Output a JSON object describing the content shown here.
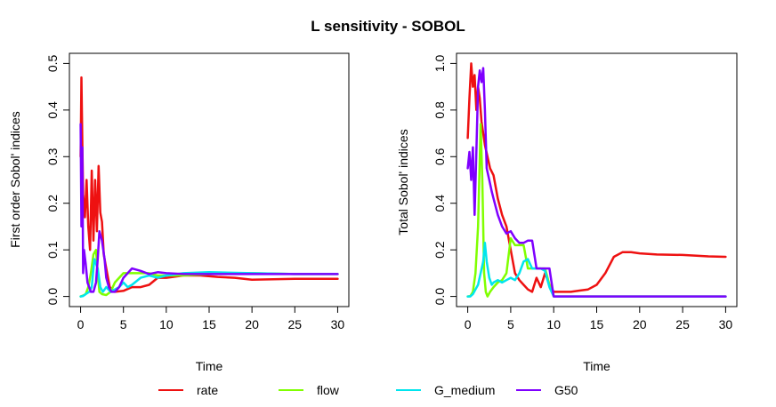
{
  "figure": {
    "title": "L sensitivity - SOBOL"
  },
  "colors": {
    "rate": "#ee1111",
    "flow": "#80ff00",
    "G_medium": "#00e5ee",
    "G50": "#7f00ff"
  },
  "legend": {
    "placement": "bottom",
    "items": [
      {
        "name": "rate",
        "label": "rate"
      },
      {
        "name": "flow",
        "label": "flow"
      },
      {
        "name": "G_medium",
        "label": "G_medium"
      },
      {
        "name": "G50",
        "label": "G50"
      }
    ]
  },
  "chart_data": [
    {
      "type": "line",
      "title": "",
      "xlabel": "Time",
      "ylabel": "First order Sobol' indices",
      "xlim": [
        0,
        30
      ],
      "ylim": [
        0,
        0.5
      ],
      "xticks": [
        "0",
        "5",
        "10",
        "15",
        "20",
        "25",
        "30"
      ],
      "yticks": [
        "0.0",
        "0.1",
        "0.2",
        "0.3",
        "0.4",
        "0.5"
      ],
      "series": [
        {
          "name": "rate",
          "x": [
            0,
            0.1,
            0.2,
            0.3,
            0.5,
            0.7,
            0.9,
            1.1,
            1.3,
            1.5,
            1.7,
            1.9,
            2.1,
            2.3,
            2.5,
            2.7,
            3.0,
            3.4,
            4,
            5,
            6,
            7,
            8,
            9,
            10,
            12,
            14,
            16,
            18,
            20,
            25,
            30
          ],
          "y": [
            0.3,
            0.47,
            0.33,
            0.22,
            0.17,
            0.25,
            0.15,
            0.1,
            0.27,
            0.12,
            0.25,
            0.14,
            0.28,
            0.18,
            0.16,
            0.09,
            0.06,
            0.02,
            0.01,
            0.012,
            0.02,
            0.02,
            0.025,
            0.04,
            0.04,
            0.045,
            0.045,
            0.042,
            0.04,
            0.036,
            0.038,
            0.038
          ]
        },
        {
          "name": "flow",
          "x": [
            0,
            0.3,
            0.6,
            0.9,
            1.2,
            1.5,
            1.8,
            2.0,
            2.2,
            2.5,
            3.0,
            3.5,
            4,
            4.5,
            5,
            6,
            7,
            8,
            9,
            10,
            12,
            15,
            20,
            25,
            30
          ],
          "y": [
            0.0,
            0.002,
            0.005,
            0.02,
            0.05,
            0.09,
            0.1,
            0.05,
            0.01,
            0.005,
            0.003,
            0.01,
            0.03,
            0.04,
            0.05,
            0.05,
            0.05,
            0.05,
            0.045,
            0.045,
            0.045,
            0.048,
            0.05,
            0.048,
            0.048
          ]
        },
        {
          "name": "G_medium",
          "x": [
            0,
            0.3,
            0.6,
            1.0,
            1.3,
            1.6,
            2.0,
            2.3,
            2.6,
            3.0,
            3.5,
            4,
            4.5,
            5,
            5.5,
            6,
            7,
            8,
            9,
            10,
            12,
            15,
            20,
            25,
            30
          ],
          "y": [
            0.0,
            0.001,
            0.005,
            0.01,
            0.02,
            0.08,
            0.06,
            0.02,
            0.01,
            0.02,
            0.01,
            0.015,
            0.02,
            0.03,
            0.02,
            0.025,
            0.04,
            0.045,
            0.04,
            0.045,
            0.05,
            0.052,
            0.05,
            0.048,
            0.048
          ]
        },
        {
          "name": "G50",
          "x": [
            0,
            0.1,
            0.2,
            0.3,
            0.4,
            0.6,
            0.8,
            1.0,
            1.2,
            1.5,
            1.8,
            2.0,
            2.2,
            2.5,
            2.8,
            3.0,
            3.3,
            3.6,
            4,
            4.5,
            5,
            5.5,
            6,
            7,
            8,
            9,
            10,
            12,
            15,
            20,
            25,
            30
          ],
          "y": [
            0.37,
            0.15,
            0.32,
            0.05,
            0.1,
            0.07,
            0.03,
            0.02,
            0.01,
            0.01,
            0.03,
            0.08,
            0.14,
            0.12,
            0.08,
            0.04,
            0.02,
            0.01,
            0.01,
            0.02,
            0.04,
            0.05,
            0.06,
            0.055,
            0.048,
            0.052,
            0.05,
            0.048,
            0.048,
            0.048,
            0.048,
            0.048
          ]
        }
      ]
    },
    {
      "type": "line",
      "title": "",
      "xlabel": "Time",
      "ylabel": "Total Sobol' indices",
      "xlim": [
        0,
        30
      ],
      "ylim": [
        0,
        1.0
      ],
      "xticks": [
        "0",
        "5",
        "10",
        "15",
        "20",
        "25",
        "30"
      ],
      "yticks": [
        "0.0",
        "0.2",
        "0.4",
        "0.6",
        "0.8",
        "1.0"
      ],
      "series": [
        {
          "name": "rate",
          "x": [
            0,
            0.2,
            0.4,
            0.6,
            0.8,
            1.0,
            1.2,
            1.4,
            1.6,
            1.8,
            2.0,
            2.3,
            2.6,
            3.0,
            3.5,
            4,
            4.5,
            5,
            5.5,
            6,
            6.5,
            7,
            7.5,
            8,
            8.5,
            9,
            9.5,
            10,
            11,
            12,
            13,
            14,
            15,
            16,
            17,
            18,
            19,
            20,
            22,
            25,
            28,
            30
          ],
          "y": [
            0.68,
            0.85,
            1.0,
            0.9,
            0.95,
            0.8,
            0.9,
            0.85,
            0.75,
            0.7,
            0.65,
            0.6,
            0.55,
            0.52,
            0.42,
            0.35,
            0.3,
            0.2,
            0.1,
            0.07,
            0.05,
            0.03,
            0.02,
            0.08,
            0.04,
            0.1,
            0.05,
            0.02,
            0.02,
            0.02,
            0.025,
            0.03,
            0.05,
            0.1,
            0.17,
            0.19,
            0.19,
            0.185,
            0.18,
            0.178,
            0.172,
            0.17
          ]
        },
        {
          "name": "flow",
          "x": [
            0,
            0.3,
            0.6,
            0.9,
            1.2,
            1.5,
            1.7,
            1.9,
            2.1,
            2.3,
            2.6,
            3.0,
            3.5,
            4.0,
            4.5,
            5.0,
            5.5,
            6,
            6.5,
            7,
            7.5,
            8,
            8.5,
            9,
            9.5,
            10,
            12,
            15,
            20,
            25,
            30
          ],
          "y": [
            0.0,
            0.001,
            0.02,
            0.1,
            0.3,
            0.74,
            0.5,
            0.1,
            0.02,
            0.0,
            0.02,
            0.04,
            0.06,
            0.07,
            0.1,
            0.25,
            0.22,
            0.22,
            0.22,
            0.12,
            0.12,
            0.12,
            0.12,
            0.12,
            0.05,
            0.0,
            0.0,
            0.0,
            0.0,
            0.0,
            0.0
          ]
        },
        {
          "name": "G_medium",
          "x": [
            0,
            0.3,
            0.6,
            0.9,
            1.2,
            1.5,
            1.8,
            2.0,
            2.2,
            2.5,
            2.8,
            3.0,
            3.5,
            4.0,
            4.5,
            5.0,
            5.5,
            6.0,
            6.5,
            7.0,
            7.5,
            8.0,
            8.5,
            9.0,
            9.5,
            10,
            12,
            15,
            20,
            25,
            30
          ],
          "y": [
            0.0,
            0.0,
            0.01,
            0.03,
            0.05,
            0.1,
            0.15,
            0.23,
            0.15,
            0.08,
            0.05,
            0.06,
            0.07,
            0.06,
            0.07,
            0.08,
            0.07,
            0.1,
            0.15,
            0.16,
            0.12,
            0.12,
            0.12,
            0.11,
            0.04,
            0.0,
            0.0,
            0.0,
            0.0,
            0.0,
            0.0
          ]
        },
        {
          "name": "G50",
          "x": [
            0,
            0.2,
            0.4,
            0.6,
            0.8,
            1.0,
            1.2,
            1.4,
            1.6,
            1.8,
            2.0,
            2.2,
            2.5,
            2.8,
            3.0,
            3.5,
            4.0,
            4.5,
            5.0,
            5.5,
            6.0,
            6.5,
            7.0,
            7.5,
            8.0,
            8.5,
            9.0,
            9.5,
            10,
            12,
            15,
            20,
            25,
            30
          ],
          "y": [
            0.55,
            0.62,
            0.5,
            0.64,
            0.35,
            0.62,
            0.9,
            0.97,
            0.92,
            0.98,
            0.8,
            0.55,
            0.5,
            0.45,
            0.42,
            0.35,
            0.3,
            0.27,
            0.28,
            0.25,
            0.23,
            0.23,
            0.24,
            0.24,
            0.12,
            0.12,
            0.12,
            0.12,
            0.0,
            0.0,
            0.0,
            0.0,
            0.0,
            0.0
          ]
        }
      ]
    }
  ]
}
